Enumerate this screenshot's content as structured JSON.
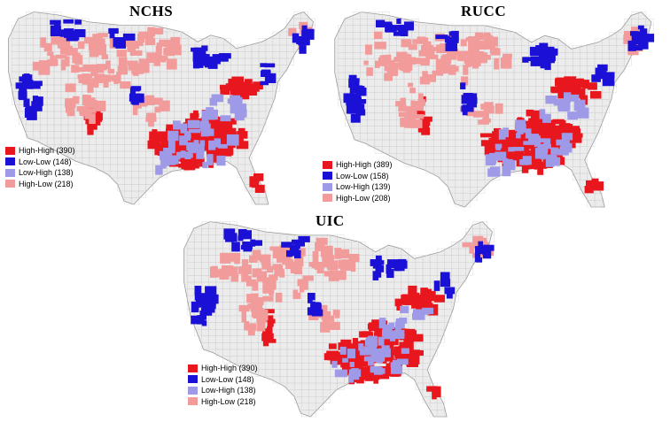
{
  "colors": {
    "high_high": "#e8171e",
    "low_low": "#1b10d6",
    "low_high": "#9e9ae8",
    "high_low": "#f29b9b",
    "background_county": "#ececec",
    "county_border": "#c8c8c8"
  },
  "maps": [
    {
      "title": "NCHS",
      "legend": [
        {
          "key": "high_high",
          "label": "High-High (390)"
        },
        {
          "key": "low_low",
          "label": "Low-Low (148)"
        },
        {
          "key": "low_high",
          "label": "Low-High (138)"
        },
        {
          "key": "high_low",
          "label": "High-Low (218)"
        }
      ]
    },
    {
      "title": "RUCC",
      "legend": [
        {
          "key": "high_high",
          "label": "High-High (389)"
        },
        {
          "key": "low_low",
          "label": "Low-Low (158)"
        },
        {
          "key": "low_high",
          "label": "Low-High (139)"
        },
        {
          "key": "high_low",
          "label": "High-Low (208)"
        }
      ]
    },
    {
      "title": "UIC",
      "legend": [
        {
          "key": "high_high",
          "label": "High-High (390)"
        },
        {
          "key": "low_low",
          "label": "Low-Low (148)"
        },
        {
          "key": "low_high",
          "label": "Low-High (138)"
        },
        {
          "key": "high_low",
          "label": "High-Low (218)"
        }
      ]
    }
  ]
}
